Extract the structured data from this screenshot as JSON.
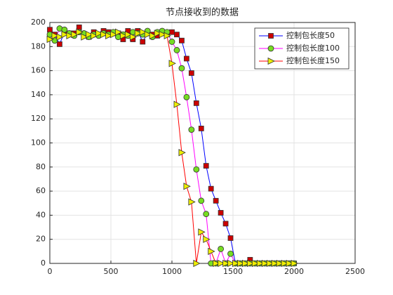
{
  "chart_data": {
    "type": "line",
    "title": "节点接收到的数据",
    "x": [
      0,
      40,
      80,
      120,
      160,
      200,
      240,
      280,
      320,
      360,
      400,
      440,
      480,
      520,
      560,
      600,
      640,
      680,
      720,
      760,
      800,
      840,
      880,
      920,
      960,
      1000,
      1040,
      1080,
      1120,
      1160,
      1200,
      1240,
      1280,
      1320,
      1360,
      1400,
      1440,
      1480,
      1520,
      1560,
      1600,
      1640,
      1680,
      1720,
      1760,
      1800,
      1840,
      1880,
      1920,
      1960,
      2000
    ],
    "series": [
      {
        "name": "控制包长度50",
        "color": "#0000ff",
        "marker": "square",
        "marker_color": "#cc0000",
        "values": [
          194,
          190,
          182,
          192,
          191,
          191,
          196,
          189,
          188,
          192,
          190,
          193,
          192,
          191,
          191,
          186,
          193,
          186,
          193,
          184,
          191,
          190,
          189,
          191,
          190,
          192,
          190,
          185,
          170,
          158,
          133,
          112,
          81,
          62,
          52,
          42,
          33,
          21,
          0,
          0,
          0,
          3,
          0,
          0,
          0,
          0,
          0,
          0,
          0,
          0,
          0
        ]
      },
      {
        "name": "控制包长度100",
        "color": "#ff00ff",
        "marker": "circle",
        "marker_color": "#77dd22",
        "values": [
          190,
          185,
          195,
          194,
          191,
          189,
          192,
          191,
          188,
          190,
          189,
          191,
          190,
          192,
          188,
          190,
          189,
          192,
          191,
          190,
          193,
          188,
          192,
          193,
          192,
          184,
          177,
          162,
          138,
          111,
          78,
          52,
          41,
          0,
          0,
          12,
          0,
          8,
          0,
          0,
          0,
          0,
          0,
          0,
          0,
          0,
          0,
          0,
          0,
          0,
          0
        ]
      },
      {
        "name": "控制包长度150",
        "color": "#ff0000",
        "marker": "triangle",
        "marker_color": "#eeee00",
        "values": [
          186,
          189,
          188,
          190,
          189,
          190,
          192,
          188,
          190,
          189,
          191,
          190,
          189,
          190,
          192,
          189,
          190,
          188,
          191,
          192,
          190,
          189,
          191,
          190,
          189,
          166,
          132,
          92,
          64,
          51,
          0,
          26,
          20,
          10,
          0,
          0,
          0,
          0,
          0,
          0,
          0,
          0,
          0,
          0,
          0,
          0,
          0,
          0,
          0,
          0,
          0
        ]
      }
    ],
    "xlim": [
      0,
      2500
    ],
    "xticks": [
      0,
      500,
      1000,
      1500,
      2000,
      2500
    ],
    "ylim": [
      0,
      200
    ],
    "yticks": [
      0,
      20,
      40,
      60,
      80,
      100,
      120,
      140,
      160,
      180,
      200
    ],
    "grid": true,
    "legend": "upper right"
  }
}
